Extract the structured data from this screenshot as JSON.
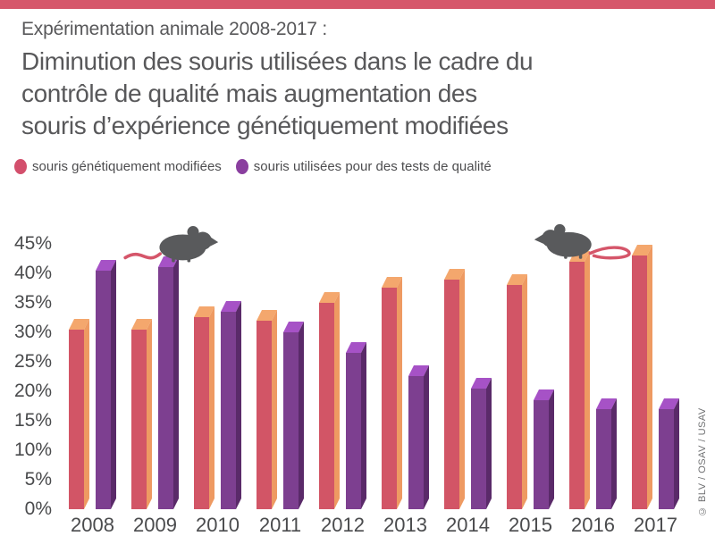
{
  "top_bar": {
    "color": "#d6576b"
  },
  "header": {
    "supertitle": "Expérimentation animale 2008-2017 :",
    "title_lines": [
      "Diminution des souris utilisées dans le cadre du",
      "contrôle de qualité mais augmentation des",
      "souris d’expérience génétiquement modifiées"
    ]
  },
  "legend": [
    {
      "id": "gm",
      "label": "souris génétiquement modifiées",
      "color": "#d34f6c"
    },
    {
      "id": "qc",
      "label": "souris utilisées pour des tests de qualité",
      "color": "#8a3f9f"
    }
  ],
  "chart_data": {
    "type": "bar",
    "title": "Diminution des souris utilisées dans le cadre du contrôle de qualité mais augmentation des souris d’expérience génétiquement modifiées",
    "subtitle": "Expérimentation animale 2008-2017 :",
    "categories": [
      "2008",
      "2009",
      "2010",
      "2011",
      "2012",
      "2013",
      "2014",
      "2015",
      "2016",
      "2017"
    ],
    "series": [
      {
        "id": "gm",
        "name": "souris génétiquement modifiées",
        "values": [
          30.5,
          30.5,
          32.5,
          32,
          35,
          37.5,
          39,
          38,
          42,
          43
        ],
        "front_color": "#d25566",
        "side_color": "#ee9a62",
        "top_color": "#f4a76d"
      },
      {
        "id": "qc",
        "name": "souris utilisées pour des tests de qualité",
        "values": [
          40.5,
          41,
          33.5,
          30,
          26.5,
          22.5,
          20.5,
          18.5,
          17,
          17
        ],
        "front_color": "#7d3f90",
        "side_color": "#5a2a69",
        "top_color": "#a652c6"
      }
    ],
    "ylabel": "",
    "xlabel": "",
    "ylim": [
      0,
      45
    ],
    "grid": false,
    "legend_position": "top",
    "yticks": [
      {
        "value": 45,
        "label": "45%"
      },
      {
        "value": 40,
        "label": "40%"
      },
      {
        "value": 35,
        "label": "35%"
      },
      {
        "value": 30,
        "label": "30%"
      },
      {
        "value": 25,
        "label": "25%"
      },
      {
        "value": 20,
        "label": "20%"
      },
      {
        "value": 15,
        "label": "15%"
      },
      {
        "value": 10,
        "label": "10%"
      },
      {
        "value": 5,
        "label": "5%"
      },
      {
        "value": 0,
        "label": "0%"
      }
    ]
  },
  "icons": {
    "mouse_color": "#595a5c",
    "mouse_tail_color": "#d5566a"
  },
  "footer": {
    "credit": "© BLV / OSAV / USAV"
  }
}
